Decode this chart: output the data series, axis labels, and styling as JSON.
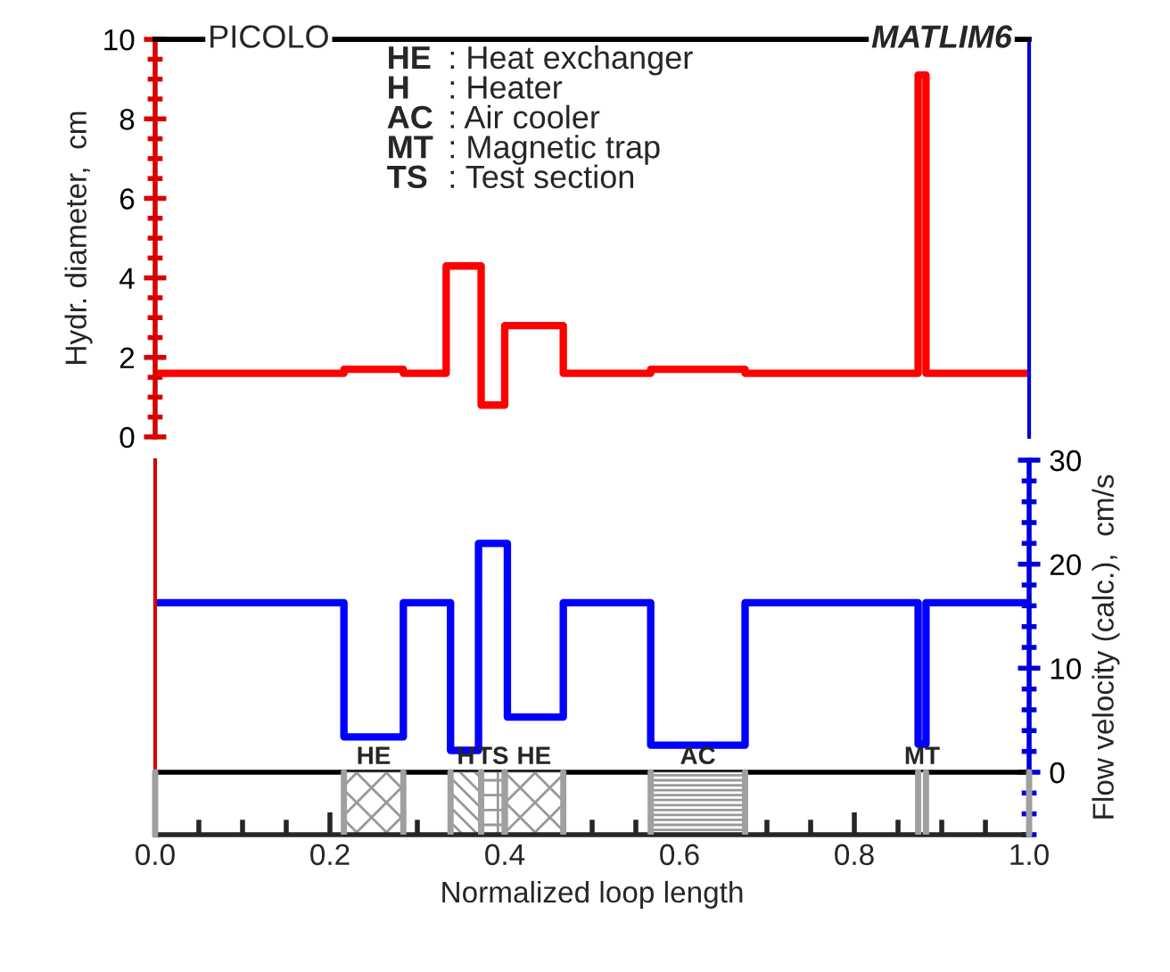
{
  "chart_data": [
    {
      "type": "step",
      "ylabel": "Hydr. diameter,  cm",
      "xlim": [
        0,
        1
      ],
      "ylim": [
        0,
        10
      ],
      "yticks": [
        0,
        2,
        4,
        6,
        8,
        10
      ],
      "tick_labels": "y",
      "grid": false,
      "legend": false,
      "marker": "none",
      "line_style": "solid",
      "annotations": [
        "PICOLO",
        "MATLIM6",
        "HE : Heat exchanger",
        "H   : Heater",
        "AC : Air cooler",
        "MT : Magnetic trap",
        "TS  : Test section"
      ],
      "x": [
        0,
        0.216,
        0.284,
        0.333,
        0.373,
        0.4,
        0.467,
        0.567,
        0.675,
        0.873,
        0.882,
        1.0
      ],
      "series": [
        {
          "color": "#ff0000",
          "values": [
            1.6,
            1.7,
            1.6,
            4.3,
            0.8,
            2.8,
            1.6,
            1.7,
            1.6,
            9.1,
            1.6,
            1.6
          ]
        }
      ]
    },
    {
      "type": "step",
      "xlabel": "Normalized loop length",
      "ylabel": "Flow velocity (calc.),  cm/s",
      "xlim": [
        0,
        1
      ],
      "xticks": [
        {
          "value": 0,
          "label": "0.0"
        },
        0.2,
        0.4,
        0.6,
        0.8,
        {
          "value": 1,
          "label": "1.0"
        }
      ],
      "ylim": [
        -6,
        30
      ],
      "yticks": [
        0,
        10,
        20,
        30
      ],
      "grid": false,
      "legend": false,
      "marker": "none",
      "line_style": "solid",
      "x": [
        0,
        0.216,
        0.284,
        0.338,
        0.37,
        0.403,
        0.467,
        0.567,
        0.675,
        0.873,
        0.882,
        1.0
      ],
      "series": [
        {
          "color": "#0000ff",
          "values": [
            16.3,
            3.4,
            16.3,
            2.1,
            22,
            5.3,
            16.3,
            2.6,
            16.3,
            2.7,
            16.3,
            16.3
          ]
        }
      ],
      "ref_lines": [
        {
          "axis": "y",
          "value": 0,
          "color": "#000000"
        }
      ],
      "bands": [
        {
          "axis": "x",
          "from": 0.216,
          "to": 0.284,
          "label": "HE"
        },
        {
          "axis": "x",
          "from": 0.338,
          "to": 0.373,
          "label": "H"
        },
        {
          "axis": "x",
          "from": 0.373,
          "to": 0.4,
          "label": "TS"
        },
        {
          "axis": "x",
          "from": 0.4,
          "to": 0.467,
          "label": "HE"
        },
        {
          "axis": "x",
          "from": 0.567,
          "to": 0.675,
          "label": "AC"
        },
        {
          "axis": "x",
          "from": 0.873,
          "to": 0.882,
          "label": "MT"
        }
      ]
    }
  ]
}
